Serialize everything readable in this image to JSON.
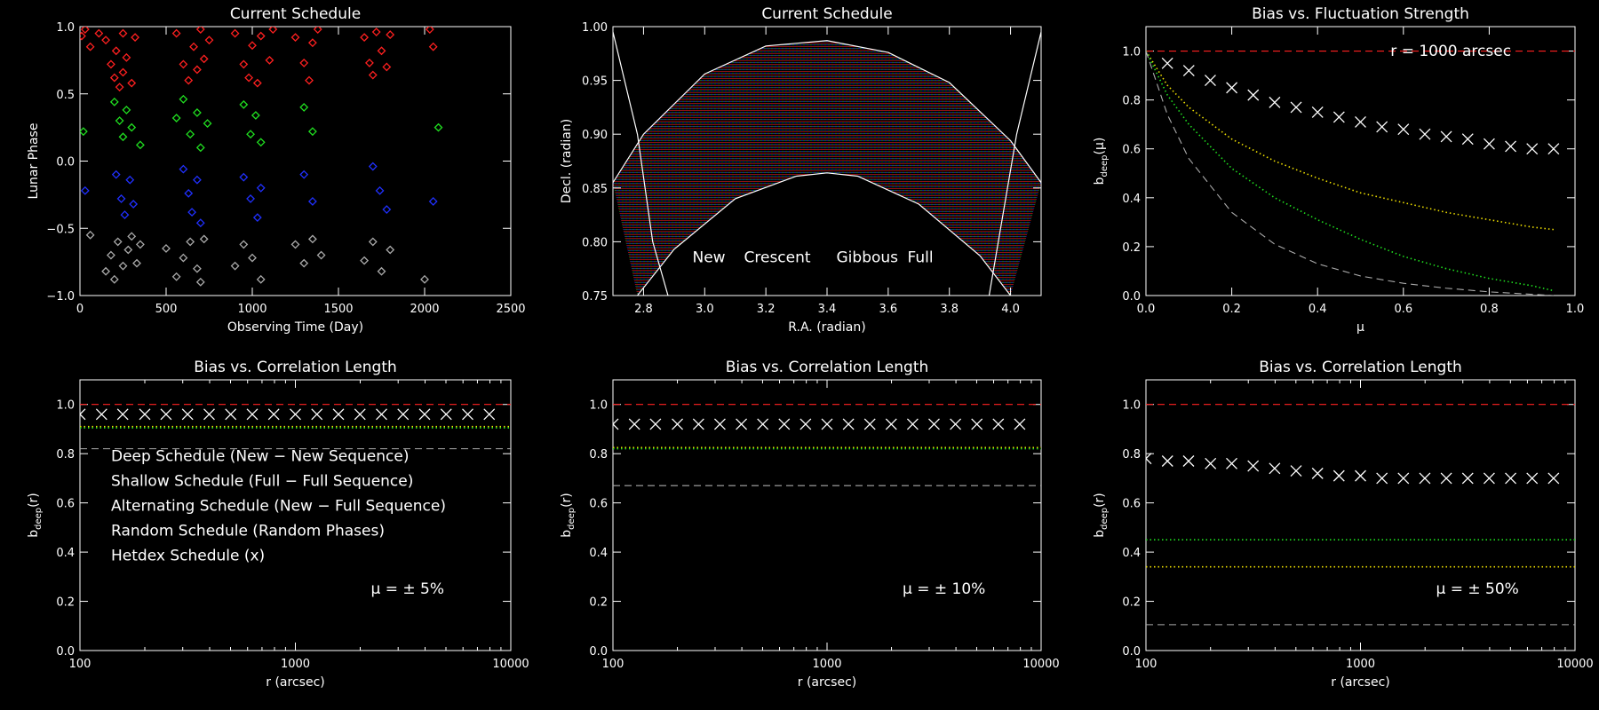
{
  "colors": {
    "red": "#ff2020",
    "green": "#20e020",
    "blue": "#2030ff",
    "grey": "#aaaaaa",
    "white": "#ffffff",
    "yellow": "#f0e000",
    "hatch_green": "#30b030"
  },
  "chart_data": [
    {
      "id": "p1",
      "type": "scatter",
      "title": "Current Schedule",
      "xlabel": "Observing Time (Day)",
      "ylabel": "Lunar Phase",
      "xlim": [
        0,
        2500
      ],
      "ylim": [
        -1,
        1
      ],
      "xticks": [
        0,
        500,
        1000,
        1500,
        2000,
        2500
      ],
      "yticks": [
        -1,
        -0.5,
        0,
        0.5,
        1
      ],
      "xticklabels": [
        "0",
        "500",
        "1000",
        "1500",
        "2000",
        "2500"
      ],
      "yticklabels": [
        "−1.0",
        "−0.5",
        "0.0",
        "0.5",
        "1.0"
      ],
      "marker": "diamond",
      "series": [
        {
          "color": "red",
          "x": [
            10,
            30,
            60,
            110,
            150,
            180,
            200,
            210,
            230,
            250,
            250,
            270,
            300,
            320,
            560,
            600,
            630,
            660,
            680,
            700,
            720,
            750,
            900,
            950,
            980,
            1000,
            1030,
            1050,
            1100,
            1120,
            1250,
            1300,
            1330,
            1350,
            1380,
            1650,
            1680,
            1700,
            1720,
            1750,
            1780,
            1800,
            2030,
            2050
          ],
          "y": [
            0.93,
            0.98,
            0.85,
            0.95,
            0.9,
            0.72,
            0.62,
            0.82,
            0.55,
            0.66,
            0.95,
            0.77,
            0.58,
            0.92,
            0.95,
            0.72,
            0.6,
            0.85,
            0.68,
            0.98,
            0.76,
            0.9,
            0.95,
            0.72,
            0.62,
            0.86,
            0.58,
            0.93,
            0.75,
            0.98,
            0.92,
            0.73,
            0.6,
            0.88,
            0.98,
            0.92,
            0.73,
            0.64,
            0.96,
            0.82,
            0.7,
            0.94,
            0.98,
            0.85
          ]
        },
        {
          "color": "green",
          "x": [
            20,
            200,
            230,
            250,
            270,
            300,
            350,
            560,
            600,
            640,
            680,
            700,
            740,
            950,
            990,
            1020,
            1050,
            1300,
            1350,
            2080
          ],
          "y": [
            0.22,
            0.44,
            0.3,
            0.18,
            0.38,
            0.25,
            0.12,
            0.32,
            0.46,
            0.2,
            0.36,
            0.1,
            0.28,
            0.42,
            0.2,
            0.34,
            0.14,
            0.4,
            0.22,
            0.25
          ]
        },
        {
          "color": "blue",
          "x": [
            30,
            210,
            240,
            260,
            290,
            310,
            600,
            630,
            650,
            680,
            700,
            950,
            990,
            1030,
            1050,
            1300,
            1350,
            1700,
            1740,
            1780,
            2050
          ],
          "y": [
            -0.22,
            -0.1,
            -0.28,
            -0.4,
            -0.14,
            -0.32,
            -0.06,
            -0.24,
            -0.38,
            -0.14,
            -0.46,
            -0.12,
            -0.28,
            -0.42,
            -0.2,
            -0.1,
            -0.3,
            -0.04,
            -0.22,
            -0.36,
            -0.3
          ]
        },
        {
          "color": "grey",
          "x": [
            60,
            150,
            180,
            200,
            220,
            250,
            280,
            300,
            330,
            350,
            500,
            560,
            600,
            640,
            680,
            700,
            720,
            900,
            950,
            1000,
            1050,
            1250,
            1300,
            1350,
            1400,
            1650,
            1700,
            1750,
            1800,
            2000
          ],
          "y": [
            -0.55,
            -0.82,
            -0.7,
            -0.88,
            -0.6,
            -0.78,
            -0.66,
            -0.56,
            -0.76,
            -0.62,
            -0.65,
            -0.86,
            -0.72,
            -0.6,
            -0.8,
            -0.9,
            -0.58,
            -0.78,
            -0.62,
            -0.72,
            -0.88,
            -0.62,
            -0.76,
            -0.58,
            -0.7,
            -0.74,
            -0.6,
            -0.82,
            -0.66,
            -0.88
          ]
        }
      ]
    },
    {
      "id": "p2",
      "type": "area",
      "title": "Current Schedule",
      "xlabel": "R.A. (radian)",
      "ylabel": "Decl. (radian)",
      "xlim": [
        2.7,
        4.1
      ],
      "ylim": [
        0.75,
        1.0
      ],
      "xticks": [
        2.8,
        3.0,
        3.2,
        3.4,
        3.6,
        3.8,
        4.0
      ],
      "yticks": [
        0.75,
        0.8,
        0.85,
        0.9,
        0.95,
        1.0
      ],
      "xticklabels": [
        "2.8",
        "3.0",
        "3.2",
        "3.4",
        "3.6",
        "3.8",
        "4.0"
      ],
      "yticklabels": [
        "0.75",
        "0.80",
        "0.85",
        "0.90",
        "0.95",
        "1.00"
      ],
      "outer_arc": [
        [
          2.7,
          0.855
        ],
        [
          2.8,
          0.9
        ],
        [
          3.0,
          0.956
        ],
        [
          3.2,
          0.982
        ],
        [
          3.4,
          0.987
        ],
        [
          3.6,
          0.976
        ],
        [
          3.8,
          0.948
        ],
        [
          4.0,
          0.894
        ],
        [
          4.1,
          0.855
        ]
      ],
      "inner_arc": [
        [
          2.78,
          0.75
        ],
        [
          2.9,
          0.793
        ],
        [
          3.1,
          0.84
        ],
        [
          3.3,
          0.861
        ],
        [
          3.4,
          0.864
        ],
        [
          3.5,
          0.861
        ],
        [
          3.7,
          0.835
        ],
        [
          3.9,
          0.787
        ],
        [
          4.0,
          0.75
        ]
      ],
      "left_line": [
        [
          2.7,
          0.995
        ],
        [
          2.78,
          0.9
        ],
        [
          2.83,
          0.8
        ],
        [
          2.88,
          0.75
        ]
      ],
      "right_line": [
        [
          4.1,
          0.995
        ],
        [
          4.02,
          0.9
        ],
        [
          3.96,
          0.8
        ],
        [
          3.93,
          0.75
        ]
      ],
      "legend": [
        {
          "label": "New",
          "color": "red"
        },
        {
          "label": "Crescent",
          "color": "green"
        },
        {
          "label": "Gibbous",
          "color": "blue"
        },
        {
          "label": "Full",
          "color": "grey"
        }
      ]
    },
    {
      "id": "p3",
      "type": "line",
      "title": "Bias vs. Fluctuation Strength",
      "xlabel": "μ",
      "ylabel": "b",
      "ylabel_sub": "deep",
      "ylabel_tail": "(μ)",
      "xlim": [
        0,
        1
      ],
      "ylim": [
        0,
        1.1
      ],
      "xticks": [
        0,
        0.2,
        0.4,
        0.6,
        0.8,
        1.0
      ],
      "yticks": [
        0,
        0.2,
        0.4,
        0.6,
        0.8,
        1.0
      ],
      "xticklabels": [
        "0.0",
        "0.2",
        "0.4",
        "0.6",
        "0.8",
        "1.0"
      ],
      "yticklabels": [
        "0.0",
        "0.2",
        "0.4",
        "0.6",
        "0.8",
        "1.0"
      ],
      "annotation": "r = 1000 arcsec",
      "series": [
        {
          "name": "deep",
          "color": "red",
          "style": "dashed",
          "x": [
            0,
            1
          ],
          "y": [
            1,
            1
          ]
        },
        {
          "name": "alternating",
          "color": "yellow",
          "style": "dotted",
          "x": [
            0,
            0.05,
            0.1,
            0.2,
            0.3,
            0.4,
            0.5,
            0.6,
            0.7,
            0.8,
            0.9,
            0.95
          ],
          "y": [
            1,
            0.86,
            0.77,
            0.64,
            0.55,
            0.48,
            0.42,
            0.38,
            0.34,
            0.31,
            0.28,
            0.27
          ]
        },
        {
          "name": "random",
          "color": "green",
          "style": "dotted",
          "x": [
            0,
            0.05,
            0.1,
            0.2,
            0.3,
            0.4,
            0.5,
            0.6,
            0.7,
            0.8,
            0.9,
            0.95
          ],
          "y": [
            1,
            0.82,
            0.7,
            0.52,
            0.4,
            0.31,
            0.23,
            0.16,
            0.11,
            0.07,
            0.04,
            0.02
          ]
        },
        {
          "name": "shallow",
          "color": "grey",
          "style": "dashed",
          "x": [
            0,
            0.05,
            0.1,
            0.2,
            0.3,
            0.4,
            0.5,
            0.6,
            0.7,
            0.8,
            0.9,
            0.95
          ],
          "y": [
            1,
            0.74,
            0.56,
            0.34,
            0.21,
            0.13,
            0.08,
            0.05,
            0.03,
            0.015,
            0.005,
            0
          ]
        },
        {
          "name": "hetdex",
          "color": "white",
          "style": "x",
          "x": [
            0.05,
            0.1,
            0.15,
            0.2,
            0.25,
            0.3,
            0.35,
            0.4,
            0.45,
            0.5,
            0.55,
            0.6,
            0.65,
            0.7,
            0.75,
            0.8,
            0.85,
            0.9,
            0.95
          ],
          "y": [
            0.95,
            0.92,
            0.88,
            0.85,
            0.82,
            0.79,
            0.77,
            0.75,
            0.73,
            0.71,
            0.69,
            0.68,
            0.66,
            0.65,
            0.64,
            0.62,
            0.61,
            0.6,
            0.6
          ]
        }
      ]
    },
    {
      "id": "p4",
      "type": "line",
      "title": "Bias vs. Correlation Length",
      "xlabel": "r (arcsec)",
      "ylabel": "b",
      "ylabel_sub": "deep",
      "ylabel_tail": "(r)",
      "xscale": "log",
      "xlim": [
        100,
        10000
      ],
      "ylim": [
        0,
        1.1
      ],
      "xticks": [
        100,
        1000,
        10000
      ],
      "yticks": [
        0,
        0.2,
        0.4,
        0.6,
        0.8,
        1.0
      ],
      "xticklabels": [
        "100",
        "1000",
        "10000"
      ],
      "yticklabels": [
        "0.0",
        "0.2",
        "0.4",
        "0.6",
        "0.8",
        "1.0"
      ],
      "annotation": "μ = ±  5%",
      "legend": [
        {
          "label": "Deep Schedule (New − New Sequence)",
          "color": "red"
        },
        {
          "label": "Shallow Schedule (Full − Full Sequence)",
          "color": "grey"
        },
        {
          "label": "Alternating Schedule (New − Full Sequence)",
          "color": "yellow"
        },
        {
          "label": "Random Schedule (Random Phases)",
          "color": "green"
        },
        {
          "label": "Hetdex Schedule (x)",
          "color": "white"
        }
      ],
      "series": [
        {
          "name": "deep",
          "color": "red",
          "style": "dashed",
          "x": [
            100,
            10000
          ],
          "y": [
            1,
            1
          ]
        },
        {
          "name": "alternating",
          "color": "yellow",
          "style": "dotted",
          "x": [
            100,
            10000
          ],
          "y": [
            0.91,
            0.91
          ]
        },
        {
          "name": "random",
          "color": "green",
          "style": "dotted",
          "x": [
            100,
            10000
          ],
          "y": [
            0.905,
            0.905
          ]
        },
        {
          "name": "shallow",
          "color": "grey",
          "style": "dashed",
          "x": [
            100,
            10000
          ],
          "y": [
            0.82,
            0.82
          ]
        },
        {
          "name": "hetdex",
          "color": "white",
          "style": "x",
          "x": [
            100,
            126,
            158,
            200,
            251,
            316,
            398,
            501,
            631,
            794,
            1000,
            1259,
            1585,
            1995,
            2512,
            3162,
            3981,
            5012,
            6310,
            7943
          ],
          "y": [
            0.96,
            0.96,
            0.96,
            0.96,
            0.96,
            0.96,
            0.96,
            0.96,
            0.96,
            0.96,
            0.96,
            0.96,
            0.96,
            0.96,
            0.96,
            0.96,
            0.96,
            0.96,
            0.96,
            0.96
          ]
        }
      ]
    },
    {
      "id": "p5",
      "type": "line",
      "title": "Bias vs. Correlation Length",
      "xlabel": "r (arcsec)",
      "ylabel": "b",
      "ylabel_sub": "deep",
      "ylabel_tail": "(r)",
      "xscale": "log",
      "xlim": [
        100,
        10000
      ],
      "ylim": [
        0,
        1.1
      ],
      "xticks": [
        100,
        1000,
        10000
      ],
      "yticks": [
        0,
        0.2,
        0.4,
        0.6,
        0.8,
        1.0
      ],
      "xticklabels": [
        "100",
        "1000",
        "10000"
      ],
      "yticklabels": [
        "0.0",
        "0.2",
        "0.4",
        "0.6",
        "0.8",
        "1.0"
      ],
      "annotation": "μ = ± 10%",
      "series": [
        {
          "name": "deep",
          "color": "red",
          "style": "dashed",
          "x": [
            100,
            10000
          ],
          "y": [
            1,
            1
          ]
        },
        {
          "name": "alternating",
          "color": "yellow",
          "style": "dotted",
          "x": [
            100,
            10000
          ],
          "y": [
            0.825,
            0.825
          ]
        },
        {
          "name": "random",
          "color": "green",
          "style": "dotted",
          "x": [
            100,
            10000
          ],
          "y": [
            0.82,
            0.82
          ]
        },
        {
          "name": "shallow",
          "color": "grey",
          "style": "dashed",
          "x": [
            100,
            10000
          ],
          "y": [
            0.67,
            0.67
          ]
        },
        {
          "name": "hetdex",
          "color": "white",
          "style": "x",
          "x": [
            100,
            126,
            158,
            200,
            251,
            316,
            398,
            501,
            631,
            794,
            1000,
            1259,
            1585,
            1995,
            2512,
            3162,
            3981,
            5012,
            6310,
            7943
          ],
          "y": [
            0.92,
            0.92,
            0.92,
            0.92,
            0.92,
            0.92,
            0.92,
            0.92,
            0.92,
            0.92,
            0.92,
            0.92,
            0.92,
            0.92,
            0.92,
            0.92,
            0.92,
            0.92,
            0.92,
            0.92
          ]
        }
      ]
    },
    {
      "id": "p6",
      "type": "line",
      "title": "Bias vs. Correlation Length",
      "xlabel": "r (arcsec)",
      "ylabel": "b",
      "ylabel_sub": "deep",
      "ylabel_tail": "(r)",
      "xscale": "log",
      "xlim": [
        100,
        10000
      ],
      "ylim": [
        0,
        1.1
      ],
      "xticks": [
        100,
        1000,
        10000
      ],
      "yticks": [
        0,
        0.2,
        0.4,
        0.6,
        0.8,
        1.0
      ],
      "xticklabels": [
        "100",
        "1000",
        "10000"
      ],
      "yticklabels": [
        "0.0",
        "0.2",
        "0.4",
        "0.6",
        "0.8",
        "1.0"
      ],
      "annotation": "μ = ± 50%",
      "series": [
        {
          "name": "deep",
          "color": "red",
          "style": "dashed",
          "x": [
            100,
            10000
          ],
          "y": [
            1,
            1
          ]
        },
        {
          "name": "random",
          "color": "green",
          "style": "dotted",
          "x": [
            100,
            10000
          ],
          "y": [
            0.45,
            0.45
          ]
        },
        {
          "name": "alternating",
          "color": "yellow",
          "style": "dotted",
          "x": [
            100,
            10000
          ],
          "y": [
            0.34,
            0.34
          ]
        },
        {
          "name": "shallow",
          "color": "grey",
          "style": "dashed",
          "x": [
            100,
            10000
          ],
          "y": [
            0.105,
            0.105
          ]
        },
        {
          "name": "hetdex",
          "color": "white",
          "style": "x",
          "x": [
            100,
            126,
            158,
            200,
            251,
            316,
            398,
            501,
            631,
            794,
            1000,
            1259,
            1585,
            1995,
            2512,
            3162,
            3981,
            5012,
            6310,
            7943
          ],
          "y": [
            0.78,
            0.77,
            0.77,
            0.76,
            0.76,
            0.75,
            0.74,
            0.73,
            0.72,
            0.71,
            0.71,
            0.7,
            0.7,
            0.7,
            0.7,
            0.7,
            0.7,
            0.7,
            0.7,
            0.7
          ]
        }
      ]
    }
  ]
}
